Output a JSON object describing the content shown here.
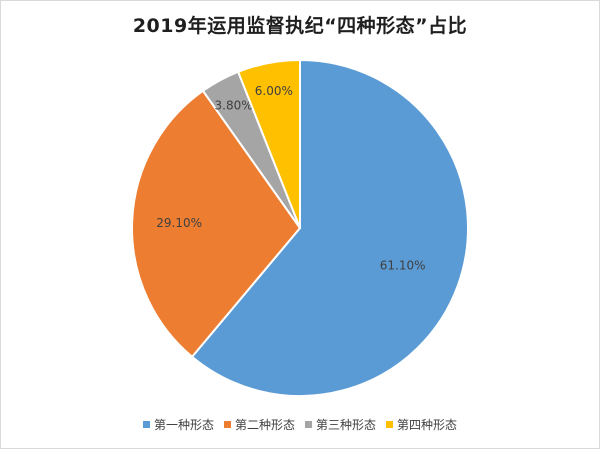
{
  "chart_data": {
    "type": "pie",
    "title": "2019年运用监督执纪“四种形态”占比",
    "categories": [
      "第一种形态",
      "第二种形态",
      "第三种形态",
      "第四种形态"
    ],
    "values": [
      61.1,
      29.1,
      3.8,
      6.0
    ],
    "value_labels": [
      "61.10%",
      "29.10%",
      "3.80%",
      "6.00%"
    ],
    "colors": [
      "#5b9bd5",
      "#ed7d31",
      "#a5a5a5",
      "#ffc000"
    ],
    "start_angle_deg": 0,
    "direction": "clockwise",
    "legend_position": "bottom"
  }
}
